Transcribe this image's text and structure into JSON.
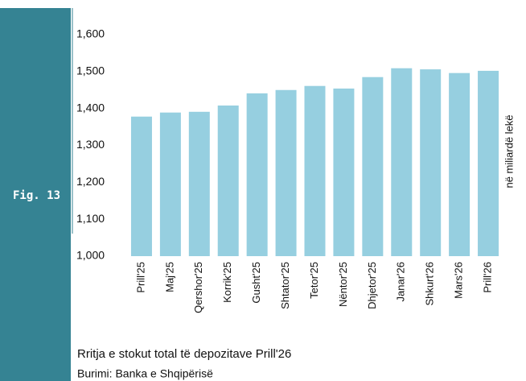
{
  "figure": "Fig. 13",
  "caption": "Rritja e stokut total të depozitave Prill'26",
  "source": "Burimi: Banka e Shqipërisë",
  "chart_data": {
    "type": "bar",
    "y_label": "në miliardë lekë",
    "categories": [
      "Prill'25",
      "Maj'25",
      "Qershor'25",
      "Korrik'25",
      "Gusht'25",
      "Shtator'25",
      "Tetor'25",
      "Nëntor'25",
      "Dhjetor'25",
      "Janar'26",
      "Shkurt'26",
      "Mars'26",
      "Prill'26"
    ],
    "values": [
      1378,
      1389,
      1391,
      1408,
      1441,
      1450,
      1461,
      1454,
      1485,
      1509,
      1506,
      1496,
      1502
    ],
    "color": "#96cfe0",
    "ylim": [
      1000,
      1600
    ],
    "yticks": [
      {
        "value": 1000,
        "label": "1,000"
      },
      {
        "value": 1100,
        "label": "1,100"
      },
      {
        "value": 1200,
        "label": "1,200"
      },
      {
        "value": 1300,
        "label": "1,300"
      },
      {
        "value": 1400,
        "label": "1,400"
      },
      {
        "value": 1500,
        "label": "1,500"
      },
      {
        "value": 1600,
        "label": "1,600"
      }
    ],
    "grid": false
  }
}
